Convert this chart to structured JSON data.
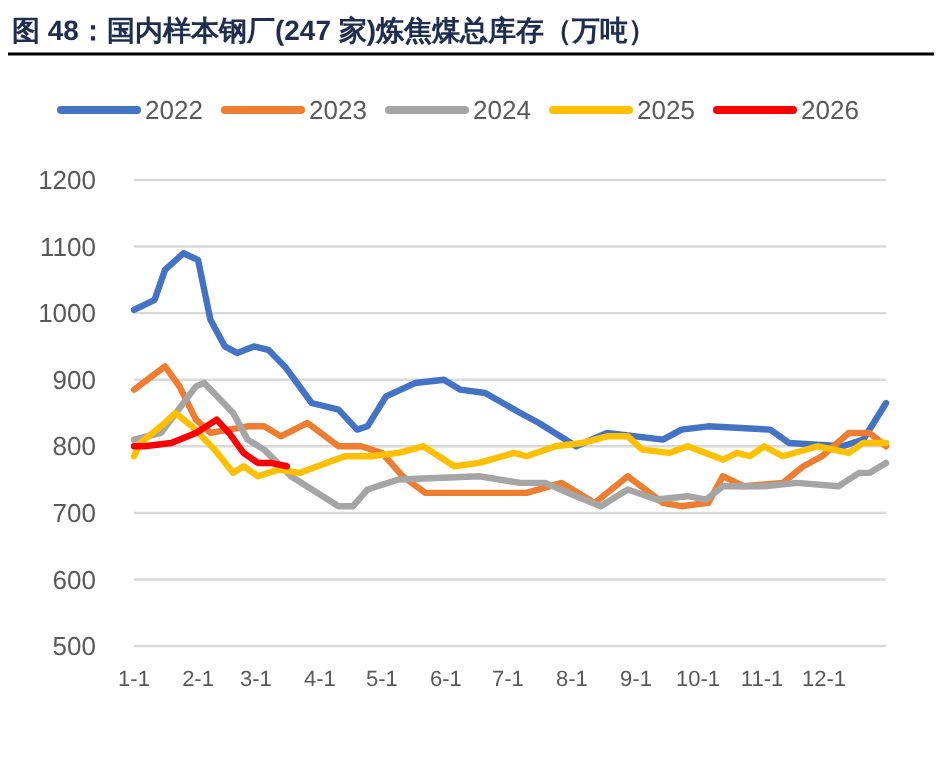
{
  "chart_data": {
    "type": "line",
    "title": "图 48：国内样本钢厂(247 家)炼焦煤总库存（万吨）",
    "xlim": [
      "--01-01",
      "--12-31"
    ],
    "xticks": [
      {
        "value": "--01-01",
        "label": "1-1"
      },
      {
        "value": "--02-01",
        "label": "2-1"
      },
      {
        "value": "--03-01",
        "label": "3-1"
      },
      {
        "value": "--04-01",
        "label": "4-1"
      },
      {
        "value": "--05-01",
        "label": "5-1"
      },
      {
        "value": "--06-01",
        "label": "6-1"
      },
      {
        "value": "--07-01",
        "label": "7-1"
      },
      {
        "value": "--08-01",
        "label": "8-1"
      },
      {
        "value": "--09-01",
        "label": "9-1"
      },
      {
        "value": "--10-01",
        "label": "10-1"
      },
      {
        "value": "--11-01",
        "label": "11-1"
      },
      {
        "value": "--12-01",
        "label": "12-1"
      }
    ],
    "ylim": [
      500,
      1200
    ],
    "yticks": [
      500,
      600,
      700,
      800,
      900,
      1000,
      1100,
      1200
    ],
    "grid": "y",
    "legend": "top",
    "marker": "none",
    "line_style": "solid",
    "series": [
      {
        "name": "2022",
        "color": "#4472c4",
        "x": [
          "--01-01",
          "--01-11",
          "--01-16",
          "--01-25",
          "--02-01",
          "--02-07",
          "--02-14",
          "--02-20",
          "--02-28",
          "--03-07",
          "--03-15",
          "--03-28",
          "--04-10",
          "--04-19",
          "--04-24",
          "--05-03",
          "--05-17",
          "--05-31",
          "--06-08",
          "--06-20",
          "--07-07",
          "--07-16",
          "--08-03",
          "--08-18",
          "--09-14",
          "--09-23",
          "--10-06",
          "--11-05",
          "--11-14",
          "--12-10",
          "--12-20",
          "--12-31"
        ],
        "values": [
          1005,
          1020,
          1065,
          1090,
          1080,
          990,
          950,
          940,
          950,
          945,
          920,
          865,
          855,
          825,
          830,
          875,
          895,
          900,
          885,
          880,
          850,
          835,
          800,
          820,
          810,
          825,
          830,
          825,
          805,
          800,
          810,
          865
        ]
      },
      {
        "name": "2023",
        "color": "#ed7d31",
        "x": [
          "--01-01",
          "--01-16",
          "--01-23",
          "--01-31",
          "--02-07",
          "--02-16",
          "--02-25",
          "--03-05",
          "--03-13",
          "--03-26",
          "--04-10",
          "--04-21",
          "--05-01",
          "--05-11",
          "--05-22",
          "--06-17",
          "--07-10",
          "--07-27",
          "--08-12",
          "--08-28",
          "--09-14",
          "--09-23",
          "--10-06",
          "--10-13",
          "--10-23",
          "--11-11",
          "--11-21",
          "--11-30",
          "--12-13",
          "--12-23",
          "--12-31"
        ],
        "values": [
          885,
          920,
          890,
          840,
          820,
          825,
          830,
          830,
          815,
          835,
          800,
          800,
          790,
          755,
          730,
          730,
          730,
          745,
          715,
          755,
          715,
          710,
          715,
          755,
          740,
          745,
          770,
          785,
          820,
          820,
          800
        ]
      },
      {
        "name": "2024",
        "color": "#a5a5a5",
        "x": [
          "--01-01",
          "--01-14",
          "--01-31",
          "--02-04",
          "--02-18",
          "--02-25",
          "--03-05",
          "--03-18",
          "--04-10",
          "--04-17",
          "--04-24",
          "--05-09",
          "--06-17",
          "--07-07",
          "--07-19",
          "--08-03",
          "--08-15",
          "--08-28",
          "--09-11",
          "--09-26",
          "--10-05",
          "--10-13",
          "--11-02",
          "--11-18",
          "--12-08",
          "--12-18",
          "--12-23",
          "--12-31"
        ],
        "values": [
          810,
          820,
          890,
          895,
          850,
          810,
          795,
          755,
          710,
          710,
          735,
          750,
          755,
          745,
          745,
          725,
          710,
          735,
          720,
          725,
          720,
          740,
          740,
          745,
          740,
          760,
          760,
          775
        ]
      },
      {
        "name": "2025",
        "color": "#ffc000",
        "x": [
          "--01-01",
          "--01-04",
          "--01-14",
          "--01-21",
          "--01-29",
          "--02-09",
          "--02-18",
          "--02-23",
          "--03-02",
          "--03-12",
          "--03-22",
          "--04-13",
          "--04-26",
          "--05-09",
          "--05-21",
          "--06-05",
          "--06-17",
          "--07-04",
          "--07-10",
          "--07-24",
          "--08-06",
          "--08-18",
          "--08-28",
          "--09-04",
          "--09-17",
          "--09-26",
          "--10-13",
          "--10-20",
          "--10-26",
          "--11-02",
          "--11-11",
          "--11-28",
          "--12-13",
          "--12-20",
          "--12-31"
        ],
        "values": [
          785,
          805,
          830,
          850,
          830,
          795,
          760,
          770,
          755,
          765,
          760,
          785,
          785,
          790,
          800,
          770,
          775,
          790,
          785,
          800,
          805,
          815,
          815,
          795,
          790,
          800,
          780,
          790,
          785,
          800,
          785,
          800,
          790,
          805,
          805
        ]
      },
      {
        "name": "2026",
        "color": "#ff0000",
        "x": [
          "--01-01",
          "--01-06",
          "--01-19",
          "--01-31",
          "--02-10",
          "--02-16",
          "--02-23",
          "--03-02",
          "--03-08",
          "--03-16"
        ],
        "values": [
          800,
          800,
          805,
          820,
          840,
          820,
          790,
          775,
          775,
          770
        ]
      }
    ]
  }
}
